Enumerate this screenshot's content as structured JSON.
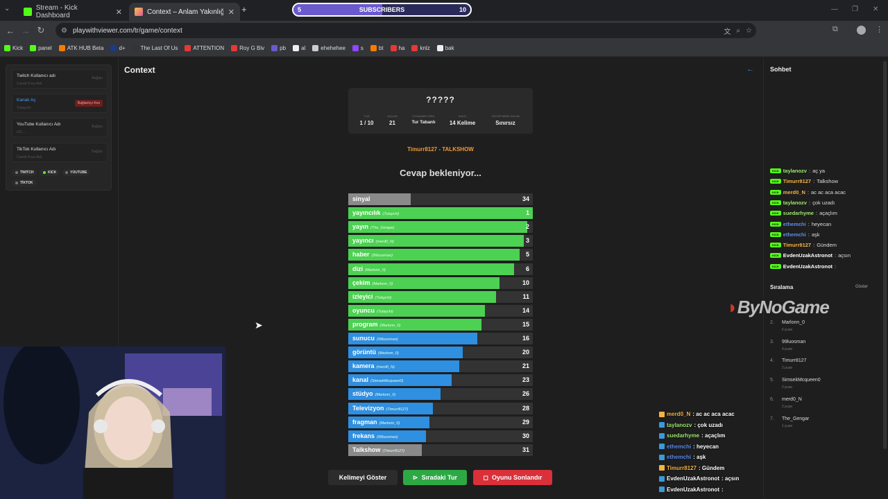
{
  "browser": {
    "tabs": [
      {
        "title": "Stream - Kick Dashboard",
        "icon": "kick-icon"
      },
      {
        "title": "Context – Anlam Yakınlığından",
        "icon": "playwithviewer-icon"
      }
    ],
    "subscribers": {
      "left": "5",
      "label": "SUBSCRIBERS",
      "count": "10"
    },
    "url": "playwithviewer.com/tr/game/context",
    "bookmarks": [
      "Kick",
      "panel",
      "ATK HUB Beta",
      "d+",
      "The Last Of Us",
      "ATTENTION",
      "Roy G Biv",
      "pb",
      "al",
      "ehehehee",
      "s",
      "bt",
      "ha",
      "knlz",
      "bak"
    ]
  },
  "left_panel": {
    "accounts": [
      {
        "title": "Twitch Kullanıcı adı",
        "sub": "Canal Kısa Adı",
        "btn": "Bağlan"
      },
      {
        "title": "Kanalı Aç",
        "sub": "Tulaychi",
        "btn": "Bağlantıyı Kes"
      },
      {
        "title": "YouTube Kullanıcı Adı",
        "sub": "UC...",
        "btn": "Bağlan"
      },
      {
        "title": "TikTok Kullanıcı Adı",
        "sub": "Canal Kısa Adı",
        "btn": "Bağlan"
      }
    ],
    "platforms": [
      "TWITCH",
      "KICK",
      "YOUTUBE",
      "TİKTOK"
    ]
  },
  "main": {
    "title": "Context",
    "mask": "?????",
    "stats": [
      {
        "label": "TUR",
        "value": "1 / 10"
      },
      {
        "label": "AÇILAN",
        "value": "21"
      },
      {
        "label": "OYNANMA TÜRÜ",
        "value": "Tur Tabanlı"
      },
      {
        "label": "KALDI",
        "value": "14 Kelime"
      },
      {
        "label": "TUR BİTİMİNE KALAN",
        "value": "Sınırsız"
      }
    ],
    "winner": "Timurr8127 - TALKSHOW",
    "waiting": "Cevap bekleniyor...",
    "guesses": [
      {
        "word": "sinyal",
        "user": "",
        "rank": "34",
        "fill": 0.34,
        "color": "#8a8a8a"
      },
      {
        "word": "yayıncılık",
        "user": "(Tulaychi)",
        "rank": "1",
        "fill": 1.0,
        "color": "#4cd152"
      },
      {
        "word": "yayın",
        "user": "(The_Gengar)",
        "rank": "2",
        "fill": 0.97,
        "color": "#4cd152"
      },
      {
        "word": "yayıncı",
        "user": "(merd0_N)",
        "rank": "3",
        "fill": 0.95,
        "color": "#4cd152"
      },
      {
        "word": "haber",
        "user": "(99luosman)",
        "rank": "5",
        "fill": 0.93,
        "color": "#4cd152"
      },
      {
        "word": "dizi",
        "user": "(Marlonn_0)",
        "rank": "6",
        "fill": 0.9,
        "color": "#4cd152"
      },
      {
        "word": "çekim",
        "user": "(Marlonn_0)",
        "rank": "10",
        "fill": 0.82,
        "color": "#4cd152"
      },
      {
        "word": "izleyici",
        "user": "(Tulaychi)",
        "rank": "11",
        "fill": 0.8,
        "color": "#4cd152"
      },
      {
        "word": "oyuncu",
        "user": "(Tulaychi)",
        "rank": "14",
        "fill": 0.74,
        "color": "#4cd152"
      },
      {
        "word": "program",
        "user": "(Marlonn_0)",
        "rank": "15",
        "fill": 0.72,
        "color": "#4cd152"
      },
      {
        "word": "sunucu",
        "user": "(99luosman)",
        "rank": "16",
        "fill": 0.7,
        "color": "#2f8fe0"
      },
      {
        "word": "görüntü",
        "user": "(Marlonn_0)",
        "rank": "20",
        "fill": 0.62,
        "color": "#2f8fe0"
      },
      {
        "word": "kamera",
        "user": "(merd0_N)",
        "rank": "21",
        "fill": 0.6,
        "color": "#2f8fe0"
      },
      {
        "word": "kanal",
        "user": "(SimsekMcqueen0)",
        "rank": "23",
        "fill": 0.56,
        "color": "#2f8fe0"
      },
      {
        "word": "stüdyo",
        "user": "(Marlonn_0)",
        "rank": "26",
        "fill": 0.5,
        "color": "#2f8fe0"
      },
      {
        "word": "Televizyon",
        "user": "(Timurr8127)",
        "rank": "28",
        "fill": 0.46,
        "color": "#2f8fe0"
      },
      {
        "word": "fragman",
        "user": "(Marlonn_0)",
        "rank": "29",
        "fill": 0.44,
        "color": "#2f8fe0"
      },
      {
        "word": "frekans",
        "user": "(99luosman)",
        "rank": "30",
        "fill": 0.42,
        "color": "#2f8fe0"
      },
      {
        "word": "Talkshow",
        "user": "(Timurr8127)",
        "rank": "31",
        "fill": 0.4,
        "color": "#8a8a8a"
      }
    ],
    "buttons": {
      "show": "Kelimeyi Göster",
      "next": "Sıradaki Tur",
      "end": "Oyunu Sonlandır"
    }
  },
  "sidebar": {
    "chat_title": "Sohbet",
    "chat": [
      {
        "user": "taylanozv",
        "msg": "aç ya",
        "color": "#9fe870"
      },
      {
        "user": "Timurr8127",
        "msg": "Talkshow",
        "color": "#f5b342"
      },
      {
        "user": "merd0_N",
        "msg": "ac ac aca acac",
        "color": "#f5b342"
      },
      {
        "user": "taylanozv",
        "msg": "çok uzadı",
        "color": "#9fe870"
      },
      {
        "user": "suedarhyme",
        "msg": "açaçlım",
        "color": "#9fe870"
      },
      {
        "user": "ethemchi",
        "msg": "heyecan",
        "color": "#5a8cf0"
      },
      {
        "user": "ethemchi",
        "msg": "aşk",
        "color": "#5a8cf0"
      },
      {
        "user": "Timurr8127",
        "msg": "Gündem",
        "color": "#f5b342"
      },
      {
        "user": "EvdenUzakAstronot",
        "msg": "açsın",
        "color": "#ffffff"
      },
      {
        "user": "EvdenUzakAstronot",
        "msg": "",
        "color": "#ffffff"
      }
    ],
    "ranking_title": "Sıralama",
    "ranking_toggle": "Göster",
    "ranking": [
      {
        "n": "2.",
        "name": "Marlonn_0",
        "pts": "6 puan"
      },
      {
        "n": "3.",
        "name": "99luosman",
        "pts": "4 puan"
      },
      {
        "n": "4.",
        "name": "Timurr8127",
        "pts": "2 puan"
      },
      {
        "n": "5.",
        "name": "SimsekMcqueen0",
        "pts": "2 puan"
      },
      {
        "n": "6.",
        "name": "merd0_N",
        "pts": "2 puan"
      },
      {
        "n": "7.",
        "name": "The_Gengar",
        "pts": "1 puan"
      }
    ],
    "brand": "ByNoGame"
  },
  "overlay_chat": [
    {
      "user": "merd0_N",
      "msg": ": ac ac aca acac",
      "color": "#f5b342"
    },
    {
      "user": "taylanozv",
      "msg": ": çok uzadı",
      "color": "#9fe870"
    },
    {
      "user": "suedarhyme",
      "msg": ": açaçlım",
      "color": "#9fe870"
    },
    {
      "user": "ethemchi",
      "msg": ": heyecan",
      "color": "#5a8cf0"
    },
    {
      "user": "ethemchi",
      "msg": ": aşk",
      "color": "#5a8cf0"
    },
    {
      "user": "Timurr8127",
      "msg": ": Gündem",
      "color": "#f5b342"
    },
    {
      "user": "EvdenUzakAstronot",
      "msg": ": açsın",
      "color": "#ffffff"
    },
    {
      "user": "EvdenUzakAstronot",
      "msg": ":",
      "color": "#ffffff"
    }
  ]
}
